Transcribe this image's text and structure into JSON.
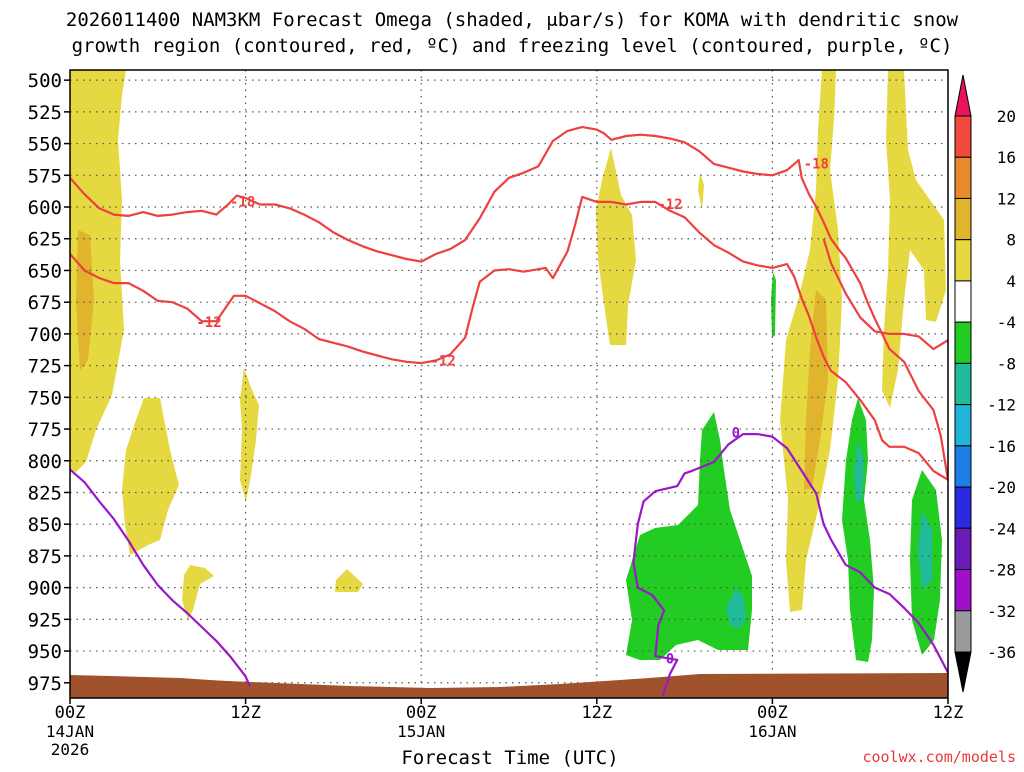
{
  "chart_data": {
    "type": "heatmap",
    "title_line1": "2026011400 NAM3KM Forecast Omega (shaded, μbar/s) for KOMA with dendritic snow",
    "title_line2": "growth region (contoured, red, ºC) and freezing level (contoured, purple, ºC)",
    "xlabel": "Forecast Time (UTC)",
    "x_range_hours": [
      0,
      60
    ],
    "x_ticks": [
      {
        "hour": 0,
        "label": "00Z",
        "sub1": "14JAN",
        "sub2": "2026"
      },
      {
        "hour": 12,
        "label": "12Z",
        "sub1": "",
        "sub2": ""
      },
      {
        "hour": 24,
        "label": "00Z",
        "sub1": "15JAN",
        "sub2": ""
      },
      {
        "hour": 36,
        "label": "12Z",
        "sub1": "",
        "sub2": ""
      },
      {
        "hour": 48,
        "label": "00Z",
        "sub1": "16JAN",
        "sub2": ""
      },
      {
        "hour": 60,
        "label": "12Z",
        "sub1": "",
        "sub2": ""
      }
    ],
    "y_range_mb": [
      492,
      987
    ],
    "y_ticks": [
      500,
      525,
      550,
      575,
      600,
      625,
      650,
      675,
      700,
      725,
      750,
      775,
      800,
      825,
      850,
      875,
      900,
      925,
      950,
      975
    ],
    "colorbar": {
      "labels": [
        "20",
        "16",
        "12",
        "8",
        "4",
        "-4",
        "-8",
        "-12",
        "-16",
        "-20",
        "-24",
        "-28",
        "-32",
        "-36"
      ],
      "colors": [
        "#e8145a",
        "#f04a3c",
        "#e88a2c",
        "#e0b42c",
        "#e6d840",
        "#ffffff",
        "#22cc22",
        "#22bb99",
        "#20b4d8",
        "#1e7ee8",
        "#2a2ae0",
        "#6a1ab8",
        "#a010c8",
        "#9a9a9a",
        "#000000"
      ]
    },
    "series": [
      {
        "name": "-18 isotherm (red)",
        "contour_label": "-18",
        "color": "#ee4040",
        "points": [
          [
            0,
            577
          ],
          [
            1,
            590
          ],
          [
            2,
            601
          ],
          [
            3,
            606
          ],
          [
            4,
            607
          ],
          [
            5,
            604
          ],
          [
            6,
            607
          ],
          [
            7,
            606
          ],
          [
            8,
            604
          ],
          [
            9,
            603
          ],
          [
            10,
            606
          ],
          [
            10.8,
            598
          ],
          [
            11.4,
            591
          ],
          [
            12,
            593
          ],
          [
            13,
            598
          ],
          [
            14,
            598
          ],
          [
            15,
            601
          ],
          [
            16,
            606
          ],
          [
            17,
            612
          ],
          [
            18,
            620
          ],
          [
            19,
            626
          ],
          [
            20,
            631
          ],
          [
            21,
            635
          ],
          [
            22,
            638
          ],
          [
            23,
            641
          ],
          [
            24,
            643
          ],
          [
            25,
            637
          ],
          [
            26,
            633
          ],
          [
            27,
            626
          ],
          [
            28,
            609
          ],
          [
            29,
            588
          ],
          [
            30,
            577
          ],
          [
            31,
            573
          ],
          [
            32,
            568
          ],
          [
            32.5,
            558
          ],
          [
            33,
            548
          ],
          [
            34,
            540
          ],
          [
            35,
            537
          ],
          [
            36,
            539
          ],
          [
            36.5,
            542
          ],
          [
            37,
            547
          ],
          [
            38,
            544
          ],
          [
            39,
            543
          ],
          [
            40,
            544
          ],
          [
            41,
            546
          ],
          [
            42,
            549
          ],
          [
            43,
            556
          ],
          [
            44,
            566
          ],
          [
            45,
            569
          ],
          [
            46,
            572
          ],
          [
            47,
            574
          ],
          [
            48,
            575
          ],
          [
            49,
            571
          ],
          [
            49.5,
            566
          ],
          [
            49.8,
            563
          ],
          [
            50,
            577
          ],
          [
            50.5,
            590
          ],
          [
            51,
            600
          ],
          [
            51.5,
            612
          ],
          [
            52,
            625
          ],
          [
            52.5,
            633
          ],
          [
            53,
            640
          ],
          [
            53.5,
            650
          ],
          [
            54,
            660
          ],
          [
            54.5,
            675
          ],
          [
            55,
            688
          ],
          [
            55.5,
            700
          ],
          [
            56,
            712
          ],
          [
            57,
            722
          ],
          [
            58,
            745
          ],
          [
            59,
            760
          ],
          [
            59.5,
            780
          ],
          [
            60,
            815
          ]
        ],
        "label_positions": [
          [
            11.8,
            595
          ],
          [
            51,
            565
          ]
        ]
      },
      {
        "name": "-12 isotherm (red)",
        "contour_label": "-12",
        "color": "#ee4040",
        "points": [
          [
            0,
            637
          ],
          [
            1,
            650
          ],
          [
            2,
            656
          ],
          [
            3,
            660
          ],
          [
            4,
            660
          ],
          [
            5,
            666
          ],
          [
            6,
            674
          ],
          [
            7,
            675
          ],
          [
            8,
            680
          ],
          [
            9,
            690
          ],
          [
            10,
            690
          ],
          [
            11.2,
            670
          ],
          [
            12,
            670
          ],
          [
            13,
            676
          ],
          [
            14,
            682
          ],
          [
            15,
            690
          ],
          [
            16,
            696
          ],
          [
            17,
            704
          ],
          [
            18,
            707
          ],
          [
            19,
            710
          ],
          [
            20,
            714
          ],
          [
            21,
            717
          ],
          [
            22,
            720
          ],
          [
            23,
            722
          ],
          [
            24,
            723
          ],
          [
            25,
            721
          ],
          [
            26,
            716
          ],
          [
            27,
            703
          ],
          [
            27.5,
            680
          ],
          [
            28,
            659
          ],
          [
            29,
            650
          ],
          [
            30,
            649
          ],
          [
            31,
            651
          ],
          [
            32,
            649
          ],
          [
            32.5,
            648
          ],
          [
            33,
            656
          ],
          [
            34,
            635
          ],
          [
            34.5,
            615
          ],
          [
            35,
            592
          ],
          [
            36,
            596
          ],
          [
            37,
            596
          ],
          [
            38,
            598
          ],
          [
            39,
            596
          ],
          [
            40,
            596
          ],
          [
            41,
            603
          ],
          [
            42,
            608
          ],
          [
            43,
            620
          ],
          [
            44,
            630
          ],
          [
            45,
            636
          ],
          [
            46,
            643
          ],
          [
            47,
            646
          ],
          [
            48,
            648
          ],
          [
            49,
            645
          ],
          [
            49.5,
            655
          ],
          [
            50,
            672
          ],
          [
            50.5,
            686
          ],
          [
            51,
            703
          ],
          [
            51.5,
            718
          ],
          [
            52,
            729
          ],
          [
            53,
            738
          ],
          [
            54,
            752
          ],
          [
            55,
            768
          ],
          [
            55.5,
            784
          ],
          [
            56,
            789
          ],
          [
            57,
            789
          ],
          [
            58,
            794
          ],
          [
            59,
            808
          ],
          [
            60,
            815
          ]
        ],
        "label_positions": [
          [
            9.5,
            690
          ],
          [
            25.5,
            720
          ],
          [
            41,
            597
          ]
        ]
      },
      {
        "name": "-12 isotherm (red, east arm)",
        "contour_label": "",
        "color": "#ee4040",
        "points": [
          [
            51.5,
            625
          ],
          [
            52,
            644
          ],
          [
            53,
            668
          ],
          [
            54,
            687
          ],
          [
            55,
            698
          ],
          [
            56,
            700
          ],
          [
            57,
            700
          ],
          [
            58,
            702
          ],
          [
            59,
            712
          ],
          [
            60,
            705
          ]
        ],
        "label_positions": []
      },
      {
        "name": "0C freezing level (purple)",
        "contour_label": "0",
        "color": "#9a18c8",
        "points": [
          [
            0,
            807
          ],
          [
            1,
            817
          ],
          [
            2,
            832
          ],
          [
            3,
            846
          ],
          [
            4,
            863
          ],
          [
            5,
            882
          ],
          [
            6,
            898
          ],
          [
            7,
            910
          ],
          [
            8,
            920
          ],
          [
            9,
            931
          ],
          [
            10,
            942
          ],
          [
            11,
            955
          ],
          [
            12,
            970
          ],
          [
            12.3,
            978
          ]
        ],
        "label_positions": []
      },
      {
        "name": "0C freezing level east (purple)",
        "contour_label": "0",
        "color": "#9a18c8",
        "points": [
          [
            40.5,
            985
          ],
          [
            41,
            968
          ],
          [
            41.5,
            957
          ],
          [
            41,
            956
          ],
          [
            40,
            954
          ],
          [
            40.2,
            930
          ],
          [
            40.6,
            918
          ],
          [
            39.8,
            906
          ],
          [
            38.8,
            900
          ],
          [
            38.5,
            880
          ],
          [
            38.8,
            850
          ],
          [
            39.2,
            832
          ],
          [
            40,
            824
          ],
          [
            41.5,
            820
          ],
          [
            42,
            810
          ],
          [
            42.5,
            808
          ],
          [
            44,
            801
          ],
          [
            45,
            787
          ],
          [
            46,
            779
          ],
          [
            47,
            779
          ],
          [
            48,
            781
          ],
          [
            49,
            790
          ],
          [
            50,
            808
          ],
          [
            51,
            826
          ],
          [
            51.5,
            850
          ],
          [
            52,
            862
          ],
          [
            53,
            882
          ],
          [
            54,
            888
          ],
          [
            55,
            900
          ],
          [
            56,
            905
          ],
          [
            57,
            916
          ],
          [
            58,
            928
          ],
          [
            59,
            945
          ],
          [
            60,
            967
          ]
        ],
        "label_positions": [
          [
            41,
            955
          ],
          [
            45.5,
            777
          ]
        ]
      }
    ]
  }
}
